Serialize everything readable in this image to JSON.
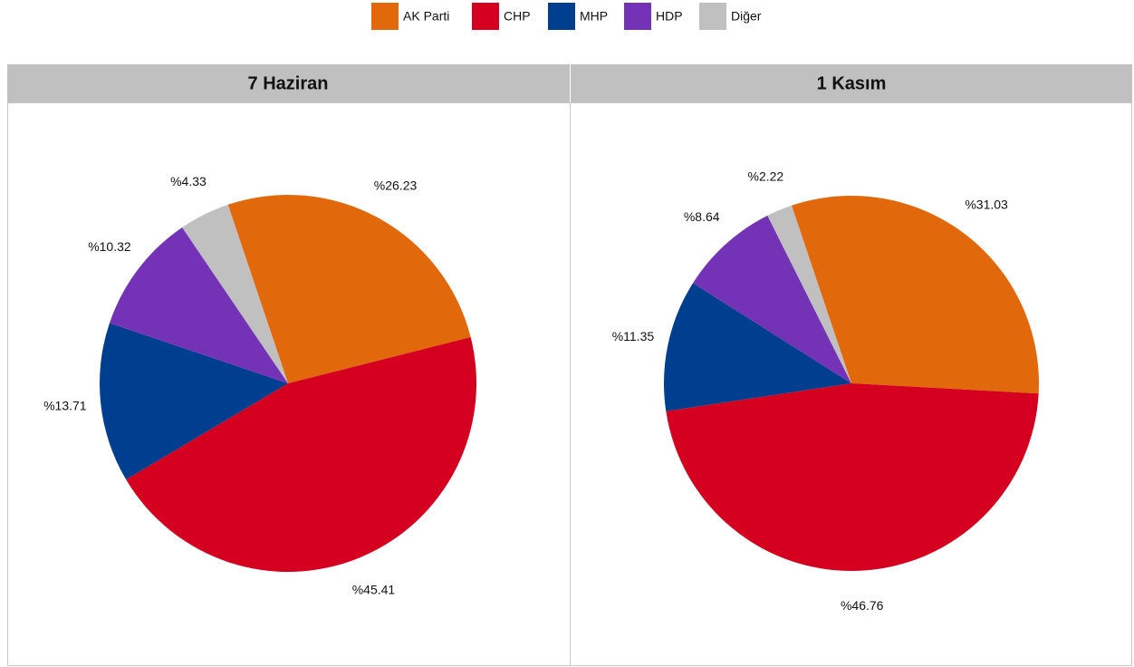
{
  "chart_data": [
    {
      "type": "pie",
      "title": "7 Haziran",
      "categories": [
        "AK Parti",
        "CHP",
        "MHP",
        "HDP",
        "Diğer"
      ],
      "values": [
        26.23,
        45.41,
        13.71,
        10.32,
        4.33
      ],
      "value_labels": [
        "%26.23",
        "%45.41",
        "%13.71",
        "%10.32",
        "%4.33"
      ],
      "colors": [
        "#e2680c",
        "#d5001f",
        "#003f8f",
        "#7433b7",
        "#c0c0c0"
      ]
    },
    {
      "type": "pie",
      "title": "1 Kasım",
      "categories": [
        "AK Parti",
        "CHP",
        "MHP",
        "HDP",
        "Diğer"
      ],
      "values": [
        31.03,
        46.76,
        11.35,
        8.64,
        2.22
      ],
      "value_labels": [
        "%31.03",
        "%46.76",
        "%11.35",
        "%8.64",
        "%2.22"
      ],
      "colors": [
        "#e2680c",
        "#d5001f",
        "#003f8f",
        "#7433b7",
        "#c0c0c0"
      ]
    }
  ]
}
